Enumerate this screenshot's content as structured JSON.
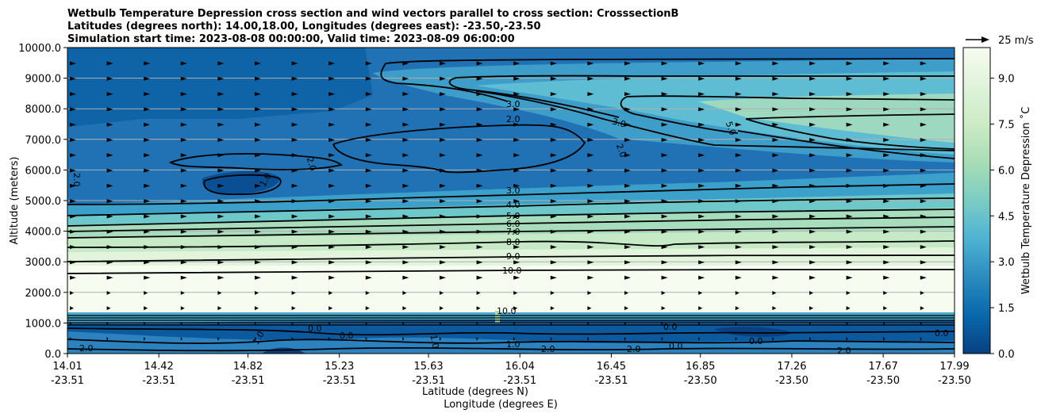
{
  "chart_data": {
    "type": "contourf",
    "title_lines": [
      "Wetbulb Temperature Depression cross section and wind vectors parallel to cross section: CrosssectionB",
      "Latitudes (degrees north): 14.00,18.00, Longitudes (degrees east): -23.50,-23.50",
      "Simulation start time: 2023-08-08 00:00:00, Valid time: 2023-08-09 06:00:00"
    ],
    "ylabel": "Altitude (meters)",
    "xlabel_primary": "Latitude (degrees N)",
    "xlabel_secondary": "Longitude (degrees E)",
    "ylim": [
      0,
      10000
    ],
    "y_ticks": [
      "0.0",
      "1000.0",
      "2000.0",
      "3000.0",
      "4000.0",
      "5000.0",
      "6000.0",
      "7000.0",
      "8000.0",
      "9000.0",
      "10000.0"
    ],
    "x_ticks": [
      {
        "lat": "14.01",
        "lon": "-23.51"
      },
      {
        "lat": "14.42",
        "lon": "-23.51"
      },
      {
        "lat": "14.82",
        "lon": "-23.51"
      },
      {
        "lat": "15.23",
        "lon": "-23.51"
      },
      {
        "lat": "15.63",
        "lon": "-23.51"
      },
      {
        "lat": "16.04",
        "lon": "-23.51"
      },
      {
        "lat": "16.45",
        "lon": "-23.51"
      },
      {
        "lat": "16.85",
        "lon": "-23.50"
      },
      {
        "lat": "17.26",
        "lon": "-23.50"
      },
      {
        "lat": "17.67",
        "lon": "-23.50"
      },
      {
        "lat": "17.99",
        "lon": "-23.50"
      }
    ],
    "grid": "horizontal",
    "colorbar": {
      "label": "Wetbulb Temperature Depression ˚C",
      "range": [
        0,
        10
      ],
      "ticks": [
        "0.0",
        "1.5",
        "3.0",
        "4.5",
        "6.0",
        "7.5",
        "9.0"
      ],
      "colormap": [
        "#084081",
        "#0868ac",
        "#2b8cbe",
        "#4eb3d3",
        "#7bccc4",
        "#a8ddb5",
        "#ccebc5",
        "#e0f3db",
        "#f7fcf0"
      ]
    },
    "quiver_key": "25 m/s",
    "contour_labels": [
      "3.0",
      "2.0",
      "2.0",
      "1.0",
      "3.0",
      "2.0",
      "5.0",
      "3.0",
      "4.0",
      "5.0",
      "6.0",
      "7.0",
      "8.0",
      "9.0",
      "10.0",
      "2.0",
      "0.0",
      "1.0",
      "2.0",
      "0.0",
      "1.0",
      "2.0",
      "0.0",
      "1.0",
      "2.0",
      "0.0",
      "0.0",
      "2.0",
      "0.0",
      "10.0"
    ]
  }
}
